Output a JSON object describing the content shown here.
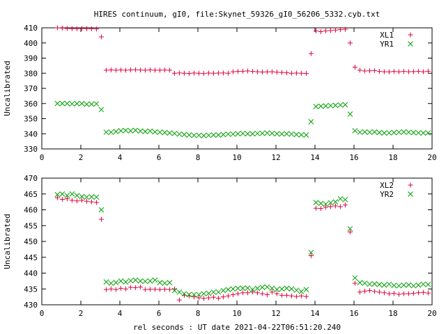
{
  "chart_data": [
    {
      "type": "scatter",
      "title": "HIRES continuum, gI0, file:Skynet_59326_gI0_56206_5332.cyb.txt",
      "xlabel": "",
      "ylabel": "Uncalibrated",
      "xlim": [
        0,
        20
      ],
      "ylim": [
        330,
        410
      ],
      "xticks": [
        0,
        2,
        4,
        6,
        8,
        10,
        12,
        14,
        16,
        18,
        20
      ],
      "yticks": [
        330,
        340,
        350,
        360,
        370,
        380,
        390,
        400,
        410
      ],
      "legend": "top-right",
      "x": [
        0.8,
        1.05,
        1.3,
        1.55,
        1.8,
        2.05,
        2.3,
        2.55,
        2.8,
        3.05,
        3.3,
        3.55,
        3.8,
        4.05,
        4.3,
        4.55,
        4.8,
        5.05,
        5.3,
        5.55,
        5.8,
        6.05,
        6.3,
        6.55,
        6.8,
        7.05,
        7.3,
        7.55,
        7.8,
        8.05,
        8.3,
        8.55,
        8.8,
        9.05,
        9.3,
        9.55,
        9.8,
        10.05,
        10.3,
        10.55,
        10.8,
        11.05,
        11.3,
        11.55,
        11.8,
        12.05,
        12.3,
        12.55,
        12.8,
        13.05,
        13.3,
        13.55,
        13.8,
        14.05,
        14.3,
        14.55,
        14.8,
        15.05,
        15.3,
        15.55,
        15.8,
        16.05,
        16.3,
        16.55,
        16.8,
        17.05,
        17.3,
        17.55,
        17.8,
        18.05,
        18.3,
        18.55,
        18.8,
        19.05,
        19.3,
        19.55,
        19.8
      ],
      "series": [
        {
          "name": "XL1",
          "color": "#e0003c",
          "marker": "plus",
          "values": [
            410,
            409.8,
            409.6,
            409.5,
            409.4,
            409.6,
            409.5,
            409.4,
            409.3,
            404,
            382,
            382.2,
            382,
            382.1,
            382,
            382.2,
            382.3,
            382.1,
            382,
            382.2,
            382,
            382,
            382.1,
            382,
            380,
            380.2,
            380,
            379.9,
            380.1,
            380,
            379.8,
            380.1,
            380,
            380.1,
            380.2,
            380,
            381,
            381.2,
            381.3,
            381.5,
            381.2,
            381,
            380.8,
            380.9,
            381,
            380.7,
            380.5,
            380.3,
            380,
            380.1,
            380,
            379.9,
            393,
            408,
            407.5,
            408,
            408.2,
            408.5,
            408.8,
            409,
            400,
            384,
            382,
            381.5,
            381.6,
            381.8,
            381.2,
            381,
            380.9,
            381.2,
            381,
            381.2,
            381,
            381.1,
            381.2,
            381,
            381.3
          ]
        },
        {
          "name": "YR1",
          "color": "#00a000",
          "marker": "cross",
          "values": [
            360,
            360,
            360,
            359.8,
            359.9,
            360,
            359.5,
            359.6,
            359.8,
            356,
            341,
            341,
            341.5,
            342,
            342.2,
            342,
            342.3,
            341.8,
            341.5,
            341.8,
            341.2,
            341,
            340.8,
            340.5,
            340.2,
            339.8,
            339.5,
            339.2,
            339,
            339,
            338.8,
            339,
            339.2,
            339.2,
            339.5,
            339.8,
            339.8,
            340,
            340.2,
            340,
            340,
            340.2,
            340.3,
            340.5,
            340.3,
            340,
            339.9,
            340,
            339.8,
            339.5,
            339.3,
            339.2,
            348,
            358,
            358.2,
            358.4,
            358.6,
            358.8,
            359,
            359.2,
            353,
            342,
            341,
            341.2,
            341,
            341.2,
            340.8,
            340.5,
            340.6,
            340.8,
            341,
            341.2,
            341,
            340.8,
            340.6,
            340.5,
            340.6
          ]
        }
      ]
    },
    {
      "type": "scatter",
      "title": "",
      "xlabel": "rel seconds : UT date 2021-04-22T06:51:20.240",
      "ylabel": "Uncalibrated",
      "xlim": [
        0,
        20
      ],
      "ylim": [
        430,
        470
      ],
      "xticks": [
        0,
        2,
        4,
        6,
        8,
        10,
        12,
        14,
        16,
        18,
        20
      ],
      "yticks": [
        430,
        435,
        440,
        445,
        450,
        455,
        460,
        465,
        470
      ],
      "legend": "top-right",
      "x": [
        0.8,
        1.05,
        1.3,
        1.55,
        1.8,
        2.05,
        2.3,
        2.55,
        2.8,
        3.05,
        3.3,
        3.55,
        3.8,
        4.05,
        4.3,
        4.55,
        4.8,
        5.05,
        5.3,
        5.55,
        5.8,
        6.05,
        6.3,
        6.55,
        6.8,
        7.05,
        7.3,
        7.55,
        7.8,
        8.05,
        8.3,
        8.55,
        8.8,
        9.05,
        9.3,
        9.55,
        9.8,
        10.05,
        10.3,
        10.55,
        10.8,
        11.05,
        11.3,
        11.55,
        11.8,
        12.05,
        12.3,
        12.55,
        12.8,
        13.05,
        13.3,
        13.55,
        13.8,
        14.05,
        14.3,
        14.55,
        14.8,
        15.05,
        15.3,
        15.55,
        15.8,
        16.05,
        16.3,
        16.55,
        16.8,
        17.05,
        17.3,
        17.55,
        17.8,
        18.05,
        18.3,
        18.55,
        18.8,
        19.05,
        19.3,
        19.55,
        19.8
      ],
      "series": [
        {
          "name": "XL2",
          "color": "#e0003c",
          "marker": "plus",
          "values": [
            463.8,
            463.3,
            463.5,
            463,
            462.8,
            463,
            462.7,
            462.5,
            462.3,
            457,
            434.8,
            435,
            434.8,
            435.2,
            435,
            435.5,
            435.4,
            435.6,
            434.8,
            434.9,
            434.9,
            434.8,
            434.9,
            434.8,
            435,
            431.5,
            433,
            432.8,
            432.5,
            432.2,
            432,
            432.2,
            432.4,
            432.1,
            432.5,
            432.8,
            433.2,
            433.5,
            433.8,
            433.8,
            434,
            433.8,
            433.5,
            433.2,
            434,
            433.5,
            433,
            433,
            432.8,
            432.6,
            432.8,
            432.6,
            445.5,
            460.5,
            460.4,
            460.8,
            461,
            461.2,
            461,
            461.5,
            453,
            436.8,
            434,
            434.3,
            434.5,
            434.2,
            434,
            433.8,
            433.5,
            433.6,
            433.3,
            433.5,
            433.5,
            433.6,
            433.8,
            433.9,
            433.7
          ]
        },
        {
          "name": "YR2",
          "color": "#00a000",
          "marker": "cross",
          "values": [
            464.8,
            465,
            464.5,
            465,
            464.5,
            464.2,
            464,
            464.1,
            464,
            460,
            437.2,
            436.8,
            437,
            437.5,
            437.2,
            437.6,
            437.8,
            437.5,
            437.4,
            437.5,
            437.8,
            437,
            436.8,
            437,
            434.5,
            434,
            433.5,
            433.2,
            433.2,
            433.2,
            433.5,
            433.6,
            434,
            434,
            434.5,
            434.8,
            435,
            435.2,
            435.2,
            435.3,
            434.8,
            435.2,
            435.5,
            435.6,
            435.2,
            434.8,
            435,
            435.2,
            435,
            434.6,
            434.2,
            434.8,
            446.5,
            462.3,
            462,
            461.8,
            462.2,
            462.5,
            463.5,
            463.2,
            454,
            438.5,
            437,
            436.8,
            436.5,
            436.6,
            436.4,
            436.2,
            436.5,
            436.1,
            436,
            436.2,
            436.3,
            436,
            436.2,
            436.5,
            436.4
          ]
        }
      ]
    }
  ]
}
